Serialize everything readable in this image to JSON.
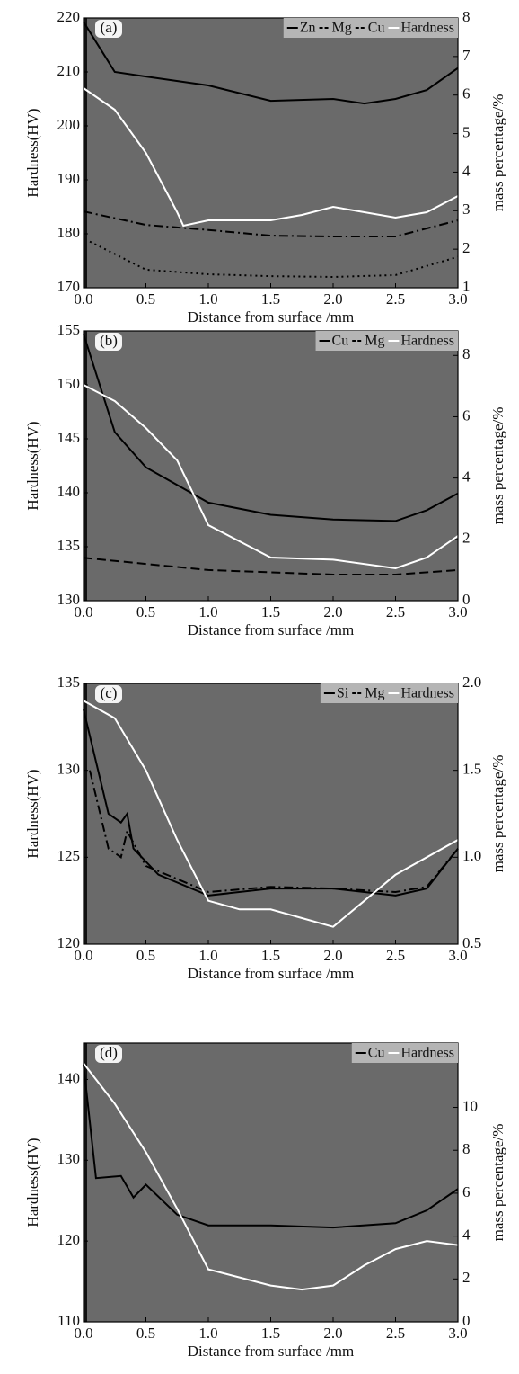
{
  "chart_data": [
    {
      "type": "line",
      "panel_label": "(a)",
      "xlabel": "Distance from surface /mm",
      "ylabel": "Hardness(HV)",
      "y2label": "mass percentage/%",
      "xlim": [
        0,
        3
      ],
      "xticks": [
        {
          "value": 0,
          "label": "0.0"
        },
        0.5,
        {
          "value": 1,
          "label": "1.0"
        },
        1.5,
        {
          "value": 2,
          "label": "2.0"
        },
        2.5,
        {
          "value": 3,
          "label": "3.0"
        }
      ],
      "ylim": [
        170,
        220
      ],
      "yticks": [
        170,
        180,
        190,
        200,
        210,
        220
      ],
      "y2lim": [
        1,
        8
      ],
      "y2ticks": [
        1,
        2,
        3,
        4,
        5,
        6,
        7,
        8
      ],
      "series": [
        {
          "name": "Zn",
          "color": "#000000",
          "dash": "solid",
          "axis": "y2",
          "x": [
            0,
            0.25,
            0.5,
            1.0,
            1.5,
            2.0,
            2.25,
            2.5,
            2.75,
            3.0
          ],
          "values": [
            7.9,
            6.6,
            6.48,
            6.25,
            5.85,
            5.9,
            5.78,
            5.9,
            6.13,
            6.7
          ]
        },
        {
          "name": "Mg",
          "color": "#000000",
          "dash": "dashdot",
          "axis": "y2",
          "x": [
            0,
            0.5,
            1.0,
            1.5,
            2.0,
            2.5,
            3.0
          ],
          "values": [
            2.98,
            2.63,
            2.5,
            2.35,
            2.33,
            2.33,
            2.75
          ]
        },
        {
          "name": "Cu",
          "color": "#000000",
          "dash": "dotted",
          "axis": "y2",
          "x": [
            0.05,
            0.5,
            1.0,
            1.5,
            2.0,
            2.5,
            3.0
          ],
          "values": [
            2.2,
            1.47,
            1.35,
            1.3,
            1.28,
            1.33,
            1.8
          ]
        },
        {
          "name": "Hardness",
          "color": "#ffffff",
          "dash": "solid",
          "x": [
            0,
            0.25,
            0.5,
            0.75,
            0.8,
            1.0,
            1.25,
            1.5,
            1.75,
            2.0,
            2.25,
            2.5,
            2.75,
            3.0
          ],
          "values": [
            207,
            203,
            195,
            184,
            181.5,
            182.5,
            182.5,
            182.5,
            183.5,
            185,
            184,
            183,
            184,
            187
          ]
        }
      ]
    },
    {
      "type": "line",
      "panel_label": "(b)",
      "xlabel": "Distance from surface /mm",
      "ylabel": "Hardness(HV)",
      "y2label": "mass percentage/%",
      "xlim": [
        0,
        3
      ],
      "xticks": [
        {
          "value": 0,
          "label": "0.0"
        },
        0.5,
        {
          "value": 1,
          "label": "1.0"
        },
        1.5,
        {
          "value": 2,
          "label": "2.0"
        },
        2.5,
        {
          "value": 3,
          "label": "3.0"
        }
      ],
      "ylim": [
        130,
        155
      ],
      "yticks": [
        130,
        135,
        140,
        145,
        150,
        155
      ],
      "y2lim": [
        0,
        8.8
      ],
      "y2ticks": [
        0,
        2,
        4,
        6,
        8
      ],
      "series": [
        {
          "name": "Cu",
          "color": "#000000",
          "dash": "solid",
          "axis": "y2",
          "x": [
            0,
            0.25,
            0.5,
            1.0,
            1.5,
            2.0,
            2.5,
            2.75,
            3.0
          ],
          "values": [
            8.7,
            5.5,
            4.35,
            3.2,
            2.8,
            2.65,
            2.6,
            2.95,
            3.5
          ]
        },
        {
          "name": "Mg",
          "color": "#000000",
          "dash": "dashed",
          "axis": "y2",
          "x": [
            0,
            0.5,
            1.0,
            2.0,
            2.5,
            3.0
          ],
          "values": [
            1.4,
            1.2,
            1.0,
            0.85,
            0.85,
            1.0
          ]
        },
        {
          "name": "Hardness",
          "color": "#ffffff",
          "dash": "solid",
          "x": [
            0,
            0.25,
            0.5,
            0.75,
            1.0,
            1.5,
            2.0,
            2.5,
            2.75,
            3.0
          ],
          "values": [
            150,
            148.5,
            146,
            143,
            137,
            134,
            133.8,
            133,
            134,
            136
          ]
        }
      ]
    },
    {
      "type": "line",
      "panel_label": "(c)",
      "xlabel": "Distance from surface /mm",
      "ylabel": "Hardness(HV)",
      "y2label": "mass percentage/%",
      "xlim": [
        0,
        3
      ],
      "xticks": [
        {
          "value": 0,
          "label": "0.0"
        },
        0.5,
        {
          "value": 1,
          "label": "1.0"
        },
        1.5,
        {
          "value": 2,
          "label": "2.0"
        },
        2.5,
        {
          "value": 3,
          "label": "3.0"
        }
      ],
      "ylim": [
        120,
        135
      ],
      "yticks": [
        120,
        125,
        130,
        135
      ],
      "y2lim": [
        0.5,
        2
      ],
      "y2ticks": [
        0.5,
        {
          "value": 1,
          "label": "1.0"
        },
        1.5,
        {
          "value": 2,
          "label": "2.0"
        }
      ],
      "series": [
        {
          "name": "Si",
          "color": "#000000",
          "dash": "solid",
          "axis": "y2",
          "x": [
            0,
            0.2,
            0.3,
            0.35,
            0.4,
            0.6,
            1.0,
            1.5,
            2.0,
            2.5,
            2.75,
            3.0
          ],
          "values": [
            1.85,
            1.25,
            1.2,
            1.25,
            1.05,
            0.9,
            0.78,
            0.82,
            0.82,
            0.78,
            0.82,
            1.05
          ]
        },
        {
          "name": "Mg",
          "color": "#000000",
          "dash": "dashdot",
          "axis": "y2",
          "x": [
            0.05,
            0.2,
            0.3,
            0.35,
            0.5,
            1.0,
            1.5,
            2.0,
            2.5,
            2.75,
            3.0
          ],
          "values": [
            1.5,
            1.05,
            1.0,
            1.15,
            0.95,
            0.8,
            0.83,
            0.82,
            0.8,
            0.83,
            1.05
          ]
        },
        {
          "name": "Hardness",
          "color": "#ffffff",
          "dash": "solid",
          "x": [
            0,
            0.25,
            0.5,
            0.75,
            1.0,
            1.25,
            1.5,
            1.75,
            2.0,
            2.25,
            2.5,
            3.0
          ],
          "values": [
            134,
            133,
            130,
            126,
            122.5,
            122,
            122,
            121.5,
            121,
            122.5,
            124,
            126
          ]
        }
      ]
    },
    {
      "type": "line",
      "panel_label": "(d)",
      "xlabel": "Distance from surface /mm",
      "ylabel": "Hardness(HV)",
      "y2label": "mass percentage/%",
      "xlim": [
        0,
        3
      ],
      "xticks": [
        {
          "value": 0,
          "label": "0.0"
        },
        0.5,
        {
          "value": 1,
          "label": "1.0"
        },
        1.5,
        {
          "value": 2,
          "label": "2.0"
        },
        2.5,
        {
          "value": 3,
          "label": "3.0"
        }
      ],
      "ylim": [
        110,
        144.5
      ],
      "yticks": [
        110,
        120,
        130,
        140
      ],
      "y2lim": [
        0,
        13
      ],
      "y2ticks": [
        0,
        2,
        4,
        6,
        8,
        10
      ],
      "series": [
        {
          "name": "Cu",
          "color": "#000000",
          "dash": "solid",
          "axis": "y2",
          "x": [
            0,
            0.1,
            0.3,
            0.4,
            0.5,
            0.75,
            1.0,
            1.5,
            2.0,
            2.5,
            2.75,
            3.0
          ],
          "values": [
            12,
            6.7,
            6.8,
            5.8,
            6.4,
            5.0,
            4.5,
            4.5,
            4.4,
            4.6,
            5.2,
            6.2
          ]
        },
        {
          "name": "Hardness",
          "color": "#ffffff",
          "dash": "solid",
          "x": [
            0,
            0.25,
            0.5,
            0.75,
            1.0,
            1.5,
            1.75,
            2.0,
            2.25,
            2.5,
            2.75,
            3.0
          ],
          "values": [
            142,
            137,
            131,
            124,
            116.5,
            114.5,
            114,
            114.5,
            117,
            119,
            120,
            119.5
          ]
        }
      ]
    }
  ]
}
